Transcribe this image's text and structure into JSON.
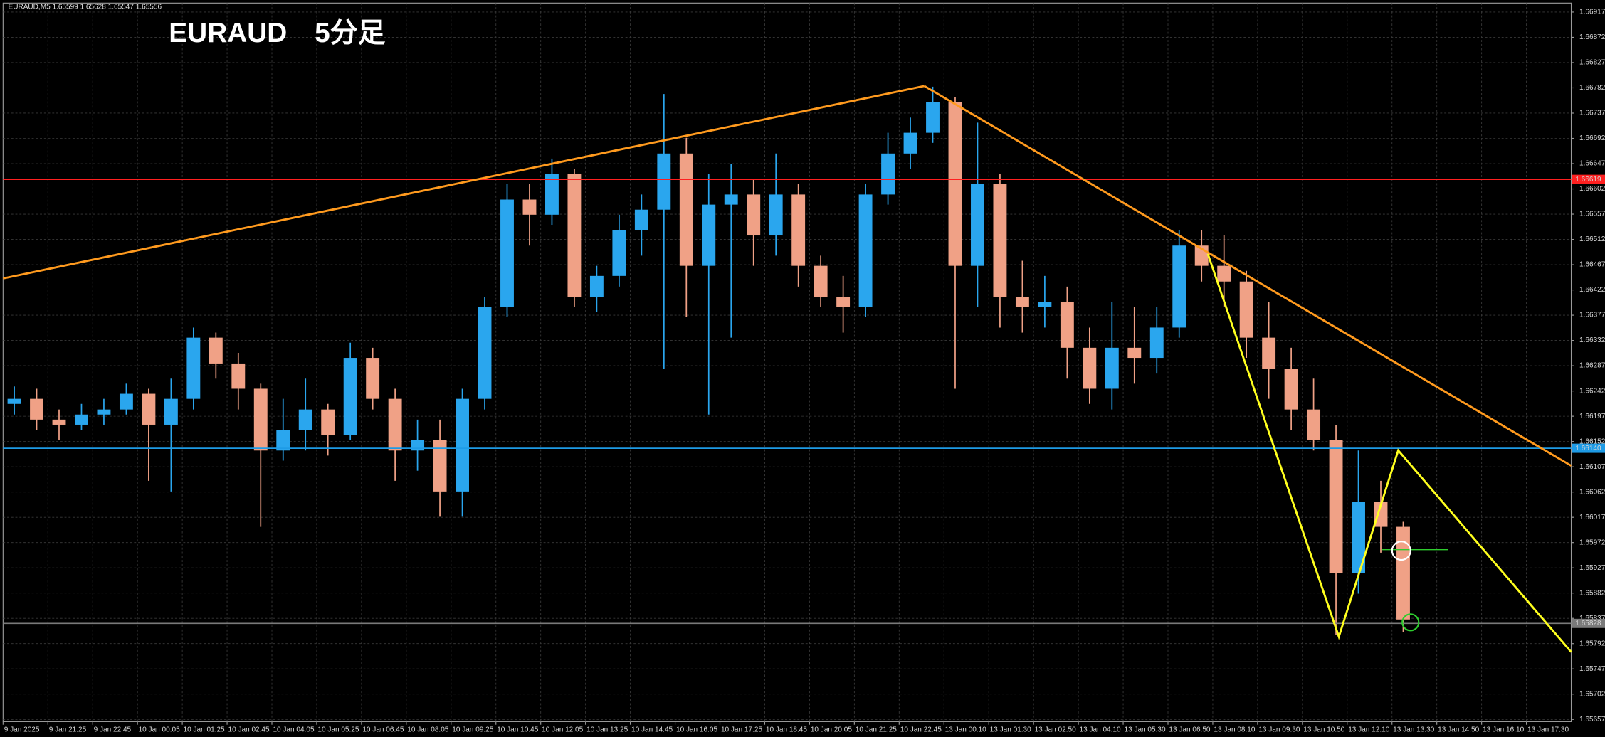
{
  "chart_data": {
    "type": "candlestick",
    "header": "EURAUD,M5  1.65599 1.65628 1.65547 1.65556",
    "title": "EURAUD　5分足",
    "categories": [
      "9 Jan 2025",
      null,
      "9 Jan 21:25",
      null,
      "9 Jan 22:45",
      null,
      "10 Jan 00:05",
      null,
      "10 Jan 01:25",
      null,
      "10 Jan 02:45",
      null,
      "10 Jan 04:05",
      null,
      "10 Jan 05:25",
      null,
      "10 Jan 06:45",
      null,
      "10 Jan 08:05",
      null,
      "10 Jan 09:25",
      null,
      "10 Jan 10:45",
      null,
      "10 Jan 12:05",
      null,
      "10 Jan 13:25",
      null,
      "10 Jan 14:45",
      null,
      "10 Jan 16:05",
      null,
      "10 Jan 17:25",
      null,
      "10 Jan 18:45",
      null,
      "10 Jan 20:05",
      null,
      "10 Jan 21:25",
      null,
      "10 Jan 22:45",
      null,
      "13 Jan 00:10",
      null,
      "13 Jan 01:30",
      null,
      "13 Jan 02:50",
      null,
      "13 Jan 04:10",
      null,
      "13 Jan 05:30",
      null,
      "13 Jan 06:50",
      null,
      "13 Jan 08:10",
      null,
      "13 Jan 09:30",
      null,
      "13 Jan 10:50",
      null,
      "13 Jan 12:10",
      null,
      "13 Jan 13:30",
      null,
      "13 Jan 14:50",
      null,
      "13 Jan 16:10",
      null,
      "13 Jan 17:30",
      null
    ],
    "open": [
      1.66219,
      1.66228,
      1.66191,
      1.66182,
      1.662,
      1.66209,
      1.66237,
      1.66182,
      1.66228,
      1.66337,
      1.66291,
      1.66246,
      1.66136,
      1.66173,
      1.66209,
      1.66164,
      1.66301,
      1.66228,
      1.66136,
      1.66155,
      1.66063,
      1.66228,
      1.66392,
      1.66583,
      1.66556,
      1.66629,
      1.6641,
      1.66447,
      1.66529,
      1.66565,
      1.66665,
      1.66465,
      1.66574,
      1.66592,
      1.66519,
      1.66592,
      1.66465,
      1.6641,
      1.66392,
      1.66592,
      1.66665,
      1.66702,
      1.66757,
      1.66465,
      1.66611,
      1.6641,
      1.66392,
      1.66401,
      1.66319,
      1.66246,
      1.66319,
      1.66301,
      1.66355,
      1.66501,
      1.66465,
      1.66437,
      1.66337,
      1.66282,
      1.66209,
      1.66155,
      1.65918,
      1.66045,
      1.66,
      null,
      null,
      null,
      null,
      null,
      null,
      null
    ],
    "high": [
      1.6625,
      1.66246,
      1.66209,
      1.66219,
      1.66228,
      1.66255,
      1.66246,
      1.66264,
      1.66355,
      1.66346,
      1.6631,
      1.66255,
      1.66228,
      1.66264,
      1.66219,
      1.66328,
      1.66319,
      1.66246,
      1.66191,
      1.66191,
      1.66246,
      1.6641,
      1.66611,
      1.66611,
      1.66656,
      1.66638,
      1.66465,
      1.66556,
      1.66592,
      1.66771,
      1.66693,
      1.66629,
      1.66647,
      1.6662,
      1.66665,
      1.66611,
      1.66483,
      1.66447,
      1.66611,
      1.66702,
      1.66729,
      1.66784,
      1.66766,
      1.6672,
      1.66629,
      1.66474,
      1.66447,
      1.66428,
      1.66355,
      1.66401,
      1.66392,
      1.66392,
      1.66529,
      1.66529,
      1.66519,
      1.66456,
      1.66401,
      1.66319,
      1.66264,
      1.66182,
      1.66136,
      1.66082,
      1.66009,
      null,
      null,
      null,
      null,
      null,
      null,
      null
    ],
    "low": [
      1.662,
      1.66173,
      1.66155,
      1.66173,
      1.66182,
      1.662,
      1.66082,
      1.66063,
      1.66209,
      1.66264,
      1.66209,
      1.66,
      1.66118,
      1.66136,
      1.66127,
      1.66155,
      1.66209,
      1.66082,
      1.661,
      1.66018,
      1.66018,
      1.66209,
      1.66374,
      1.66501,
      1.66538,
      1.66392,
      1.66383,
      1.66428,
      1.66483,
      1.66282,
      1.66374,
      1.662,
      1.66337,
      1.66465,
      1.66483,
      1.66428,
      1.66392,
      1.66346,
      1.66374,
      1.66574,
      1.66638,
      1.66684,
      1.66246,
      1.66392,
      1.66355,
      1.66346,
      1.66355,
      1.66264,
      1.66219,
      1.66209,
      1.66255,
      1.66273,
      1.66337,
      1.66437,
      1.66392,
      1.66301,
      1.66228,
      1.66173,
      1.66136,
      1.65808,
      1.65881,
      1.65954,
      1.65812,
      null,
      null,
      null,
      null,
      null,
      null,
      null
    ],
    "close": [
      1.66228,
      1.66191,
      1.66182,
      1.662,
      1.66209,
      1.66237,
      1.66182,
      1.66228,
      1.66337,
      1.66291,
      1.66246,
      1.66136,
      1.66173,
      1.66209,
      1.66164,
      1.66301,
      1.66228,
      1.66136,
      1.66155,
      1.66063,
      1.66228,
      1.66392,
      1.66583,
      1.66556,
      1.66629,
      1.6641,
      1.66447,
      1.66529,
      1.66565,
      1.66665,
      1.66465,
      1.66574,
      1.66592,
      1.66519,
      1.66592,
      1.66465,
      1.6641,
      1.66392,
      1.66592,
      1.66665,
      1.66702,
      1.66757,
      1.66465,
      1.66611,
      1.6641,
      1.66392,
      1.66401,
      1.66319,
      1.66246,
      1.66319,
      1.66301,
      1.66355,
      1.66501,
      1.66465,
      1.66437,
      1.66337,
      1.66282,
      1.66209,
      1.66155,
      1.65918,
      1.66045,
      1.66,
      1.65835,
      null,
      null,
      null,
      null,
      null,
      null,
      null
    ],
    "up_color": "#2aa6ee",
    "down_color": "#f0a186",
    "ylim": [
      1.65653,
      1.66933
    ],
    "yticks": [
      1.66917,
      1.66872,
      1.66827,
      1.66782,
      1.66737,
      1.66692,
      1.66647,
      1.66602,
      1.66557,
      1.66512,
      1.66467,
      1.66422,
      1.66377,
      1.66332,
      1.66287,
      1.66242,
      1.66197,
      1.66152,
      1.66107,
      1.66062,
      1.66017,
      1.65972,
      1.65927,
      1.65882,
      1.65837,
      1.65792,
      1.65747,
      1.65702,
      1.65657
    ],
    "grid": true,
    "hlines": [
      {
        "value": 1.66619,
        "label": "1.66619",
        "color": "#ff2020"
      },
      {
        "value": 1.6614,
        "label": "1.66140",
        "color": "#1e9be6"
      },
      {
        "value": 1.65828,
        "label": "1.65828",
        "color": "#7a7a7a"
      }
    ]
  }
}
